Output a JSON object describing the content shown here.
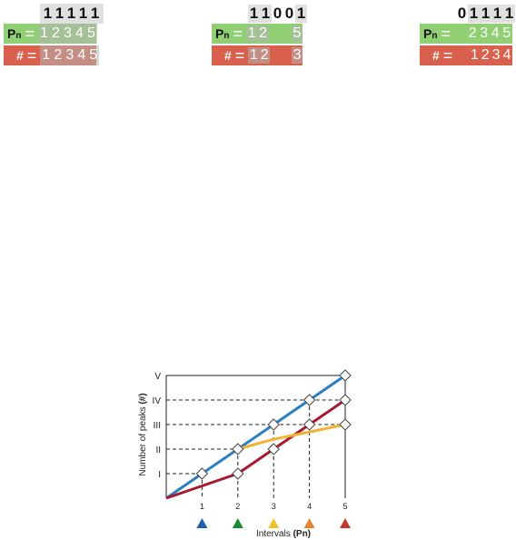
{
  "panels": [
    {
      "bits": [
        "1",
        "1",
        "1",
        "1",
        "1"
      ],
      "pn_label": "P",
      "pn_sub": "n",
      "pn_values": [
        "1",
        "2",
        "3",
        "4",
        "5"
      ],
      "count_label": "#",
      "count_values": [
        "1",
        "2",
        "3",
        "4",
        "5"
      ]
    },
    {
      "bits": [
        "1",
        "1",
        "0",
        "0",
        "1"
      ],
      "pn_label": "P",
      "pn_sub": "n",
      "pn_values": [
        "1",
        "2",
        "",
        "",
        "5"
      ],
      "count_label": "#",
      "count_values": [
        "1",
        "2",
        "",
        "",
        "3"
      ]
    },
    {
      "bits": [
        "0",
        "1",
        "1",
        "1",
        "1"
      ],
      "pn_label": "P",
      "pn_sub": "n",
      "pn_values": [
        "2",
        "3",
        "4",
        "5"
      ],
      "count_label": "#",
      "count_values": [
        "1",
        "2",
        "3",
        "4"
      ]
    }
  ],
  "chart_data": {
    "type": "line",
    "xlabel": "Intervals",
    "xlabel_bold": "(Pn)",
    "ylabel": "Number of peaks",
    "ylabel_bold": "(#)",
    "x_ticks": [
      "1",
      "2",
      "3",
      "4",
      "5"
    ],
    "y_ticks": [
      "I",
      "II",
      "III",
      "IV",
      "V"
    ],
    "xlim": [
      0,
      5
    ],
    "ylim": [
      0,
      5
    ],
    "series": [
      {
        "color": "#2a7fc4",
        "points": [
          [
            0,
            0
          ],
          [
            1,
            1
          ],
          [
            2,
            2
          ],
          [
            3,
            3
          ],
          [
            4,
            4
          ],
          [
            5,
            5
          ]
        ]
      },
      {
        "color": "#a6192e",
        "points": [
          [
            0,
            0
          ],
          [
            1,
            0.5
          ],
          [
            2,
            1
          ],
          [
            3,
            2
          ],
          [
            4,
            3
          ],
          [
            5,
            4
          ]
        ]
      },
      {
        "color": "#f2b233",
        "points": [
          [
            2,
            2
          ],
          [
            3,
            2.4
          ],
          [
            4,
            2.7
          ],
          [
            5,
            3
          ]
        ]
      }
    ],
    "markers": [
      [
        1,
        1
      ],
      [
        2,
        1
      ],
      [
        2,
        2
      ],
      [
        3,
        2
      ],
      [
        3,
        3
      ],
      [
        4,
        3
      ],
      [
        4,
        4
      ],
      [
        5,
        3
      ],
      [
        5,
        4
      ],
      [
        5,
        5
      ]
    ],
    "dashed_h": [
      [
        1,
        1
      ],
      [
        2,
        2
      ],
      [
        3,
        3
      ],
      [
        4,
        4
      ]
    ],
    "dashed_v": [
      [
        1,
        1
      ],
      [
        2,
        2
      ],
      [
        3,
        3
      ],
      [
        4,
        4
      ]
    ],
    "interval_colors": [
      "#1f5fae",
      "#1d8a3a",
      "#f2c12e",
      "#e7832a",
      "#c0392b"
    ]
  }
}
